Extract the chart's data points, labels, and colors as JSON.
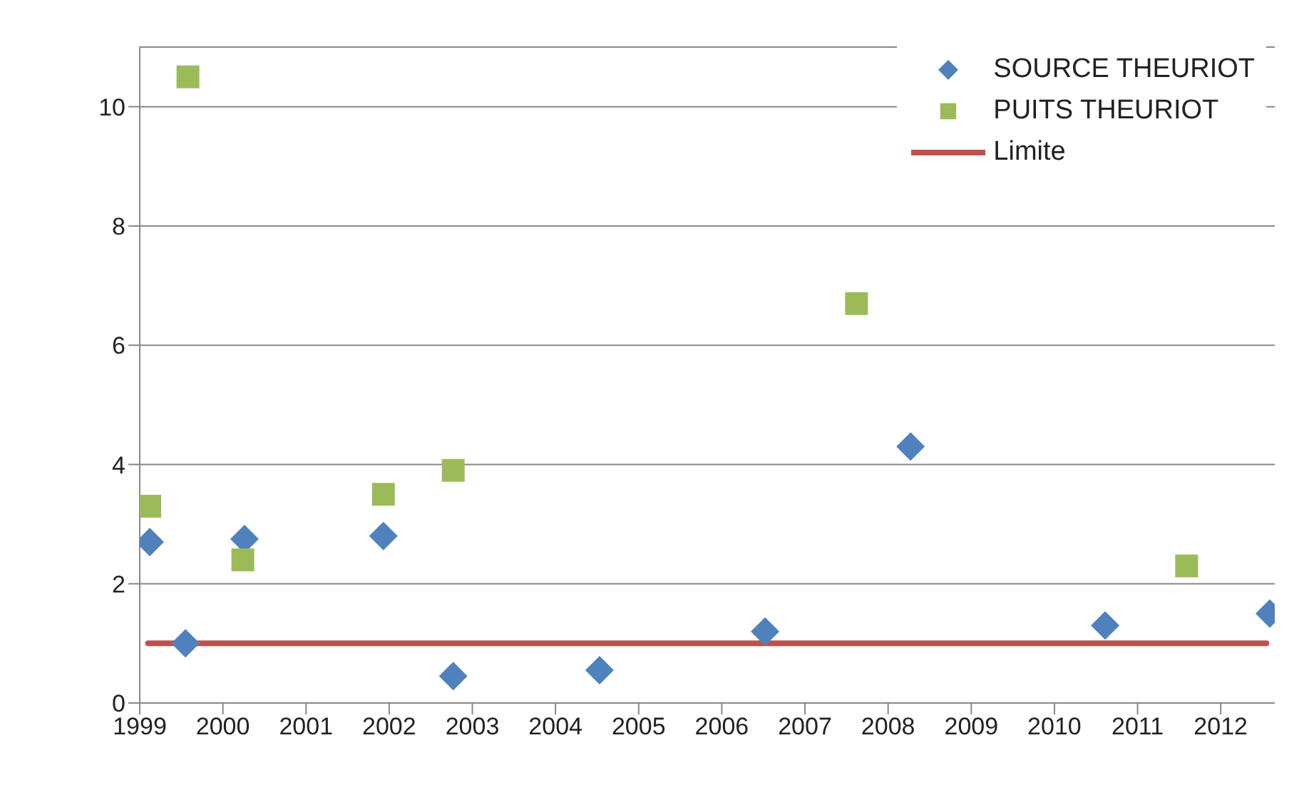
{
  "chart_data": {
    "type": "scatter",
    "xlim": [
      1999,
      2012.65
    ],
    "xticks": [
      1999,
      2000,
      2001,
      2002,
      2003,
      2004,
      2005,
      2006,
      2007,
      2008,
      2009,
      2010,
      2011,
      2012
    ],
    "ylim": [
      0,
      11
    ],
    "yticks": [
      0,
      2,
      4,
      6,
      8,
      10
    ],
    "grid": "y",
    "legend": "top right",
    "series": [
      {
        "name": "SOURCE THEURIOT",
        "marker": "diamond",
        "color": "#4f81bd",
        "x": [
          1999.12,
          1999.55,
          2000.26,
          2001.93,
          2002.77,
          2004.53,
          2006.52,
          2008.27,
          2010.61,
          2012.59
        ],
        "values": [
          2.7,
          1.0,
          2.75,
          2.8,
          0.45,
          0.55,
          1.2,
          4.3,
          1.3,
          1.5
        ]
      },
      {
        "name": "PUITS THEURIOT",
        "marker": "square",
        "color": "#9bbb59",
        "x": [
          1999.12,
          1999.58,
          2000.24,
          2001.93,
          2002.77,
          2007.62,
          2011.59
        ],
        "values": [
          3.3,
          10.5,
          2.4,
          3.5,
          3.9,
          6.7,
          2.3
        ]
      },
      {
        "name": "Limite",
        "type": "line",
        "marker": "none",
        "line_style": "solid",
        "color": "#c0504d",
        "x": [
          1999.1,
          2012.55
        ],
        "values": [
          1,
          1
        ]
      }
    ]
  }
}
